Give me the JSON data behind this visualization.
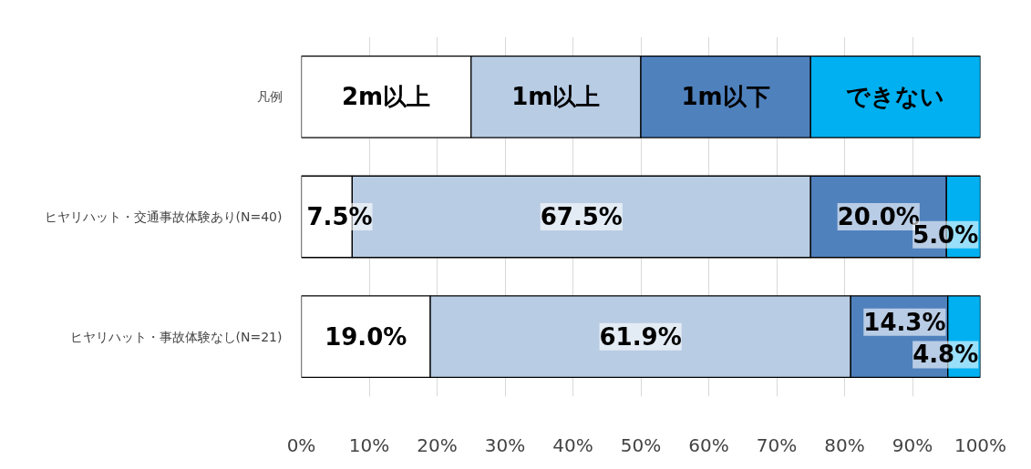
{
  "chart_data": {
    "type": "bar",
    "orientation": "horizontal",
    "stacked": true,
    "legend": "top",
    "categories": [
      "凡例",
      "ヒヤリハット・交通事故体験あり(N=40)",
      "ヒヤリハット・事故体験なし(N=21)"
    ],
    "series": [
      {
        "name": "2m以上",
        "color": "#ffffff",
        "values": [
          25,
          7.5,
          19.0
        ],
        "value_labels": [
          null,
          "7.5%",
          "19.0%"
        ]
      },
      {
        "name": "1m以上",
        "color": "#b8cce4",
        "values": [
          25,
          67.5,
          61.9
        ],
        "value_labels": [
          null,
          "67.5%",
          "61.9%"
        ]
      },
      {
        "name": "1m以下",
        "color": "#4f81bd",
        "values": [
          25,
          20.0,
          14.3
        ],
        "value_labels": [
          null,
          "20.0%",
          "14.3%"
        ]
      },
      {
        "name": "できない",
        "color": "#00b0f0",
        "values": [
          25,
          5.0,
          4.8
        ],
        "value_labels": [
          null,
          "5.0%",
          "4.8%"
        ]
      }
    ],
    "xlim": [
      0,
      100
    ],
    "xticks": [
      {
        "value": 0,
        "label": "0%"
      },
      {
        "value": 10,
        "label": "10%"
      },
      {
        "value": 20,
        "label": "20%"
      },
      {
        "value": 30,
        "label": "30%"
      },
      {
        "value": 40,
        "label": "40%"
      },
      {
        "value": 50,
        "label": "50%"
      },
      {
        "value": 60,
        "label": "60%"
      },
      {
        "value": 70,
        "label": "70%"
      },
      {
        "value": 80,
        "label": "80%"
      },
      {
        "value": 90,
        "label": "90%"
      },
      {
        "value": 100,
        "label": "100%"
      }
    ],
    "grid": "x"
  }
}
